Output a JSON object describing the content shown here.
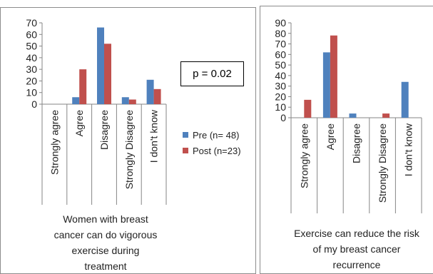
{
  "colors": {
    "pre": "#4f81bd",
    "post": "#c0504d",
    "axis": "#868686"
  },
  "left_chart": {
    "caption": "Women with breast cancer can do vigorous exercise during treatment",
    "caption_lines": [
      "Women with breast",
      "cancer can do vigorous",
      "exercise during",
      "treatment"
    ],
    "p_value": "p = 0.02",
    "legend": {
      "pre": "Pre (n= 48)",
      "post": "Post (n=23)"
    }
  },
  "right_chart": {
    "caption": "Exercise can reduce the risk of my breast cancer recurrence",
    "caption_lines": [
      "Exercise can reduce the risk",
      "of my breast cancer",
      "recurrence"
    ]
  },
  "chart_data": [
    {
      "type": "bar",
      "title": "",
      "xlabel": "Women with breast cancer can do vigorous exercise during treatment",
      "ylabel": "",
      "categories": [
        "Strongly agree",
        "Agree",
        "Disagree",
        "Strongly Disagree",
        "I don't know"
      ],
      "ylim": [
        0,
        70
      ],
      "yticks": [
        0,
        10,
        20,
        30,
        40,
        50,
        60,
        70
      ],
      "legend_position": "right",
      "annotation": "p = 0.02",
      "series": [
        {
          "name": "Pre (n= 48)",
          "color": "#4f81bd",
          "values": [
            0,
            6,
            66,
            6,
            21
          ]
        },
        {
          "name": "Post (n=23)",
          "color": "#c0504d",
          "values": [
            0,
            30,
            52,
            4,
            13
          ]
        }
      ]
    },
    {
      "type": "bar",
      "title": "",
      "xlabel": "Exercise can reduce the risk of my breast cancer recurrence",
      "ylabel": "",
      "categories": [
        "Strongly agree",
        "Agree",
        "Disagree",
        "Strongly Disagree",
        "I don't know"
      ],
      "ylim": [
        0,
        90
      ],
      "yticks": [
        0,
        10,
        20,
        30,
        40,
        50,
        60,
        70,
        80,
        90
      ],
      "legend_position": "none",
      "series": [
        {
          "name": "Pre (n= 48)",
          "color": "#4f81bd",
          "values": [
            0,
            62,
            4,
            0,
            34
          ]
        },
        {
          "name": "Post (n=23)",
          "color": "#c0504d",
          "values": [
            17,
            78,
            0,
            4,
            0
          ]
        }
      ]
    }
  ]
}
